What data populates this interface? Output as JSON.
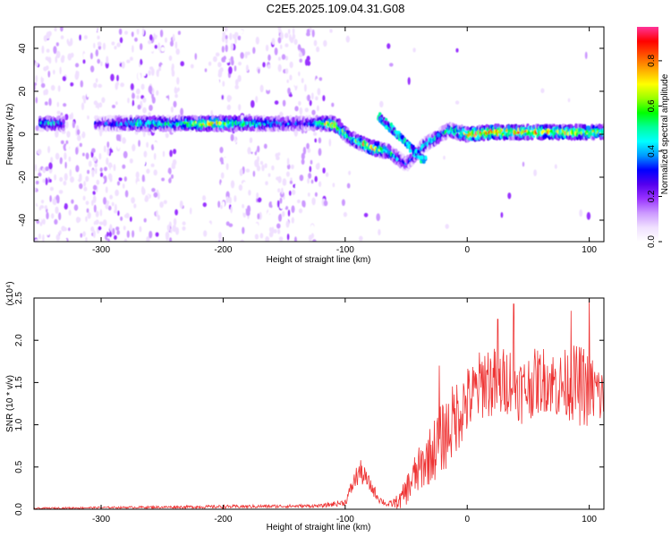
{
  "title": "C2E5.2025.109.04.31.G08",
  "chart_data": [
    {
      "type": "heatmap",
      "xlabel": "Height of straight line (km)",
      "ylabel": "Frequency (Hz)",
      "xlim": [
        -355,
        112
      ],
      "ylim": [
        -50,
        50
      ],
      "xticks": [
        -300,
        -200,
        -100,
        0,
        100
      ],
      "yticks": [
        -40,
        -20,
        0,
        20,
        40
      ],
      "colorbar": {
        "label": "Normalized spectral amplitude",
        "range": [
          0.0,
          0.95
        ],
        "ticks": [
          0.0,
          0.2,
          0.4,
          0.6,
          0.8
        ],
        "colors": [
          "#ffffff",
          "#f0e0ff",
          "#cc99ff",
          "#9933ff",
          "#5500ee",
          "#0000ff",
          "#0099ff",
          "#00ffff",
          "#00ff99",
          "#00ff00",
          "#99ff00",
          "#ffff00",
          "#ffaa00",
          "#ff5500",
          "#ff0000",
          "#ff3399"
        ]
      },
      "ridge": [
        {
          "x": -340,
          "y": 5,
          "a": 0.5
        },
        {
          "x": -300,
          "y": 5,
          "a": 0.35
        },
        {
          "x": -270,
          "y": 5,
          "a": 0.6
        },
        {
          "x": -240,
          "y": 5,
          "a": 0.6
        },
        {
          "x": -215,
          "y": 5,
          "a": 0.85
        },
        {
          "x": -190,
          "y": 5,
          "a": 0.7
        },
        {
          "x": -160,
          "y": 5,
          "a": 0.5
        },
        {
          "x": -130,
          "y": 5,
          "a": 0.4
        },
        {
          "x": -110,
          "y": 5,
          "a": 0.9
        },
        {
          "x": -95,
          "y": -2,
          "a": 0.6
        },
        {
          "x": -80,
          "y": -6,
          "a": 0.9
        },
        {
          "x": -65,
          "y": -8,
          "a": 0.6
        },
        {
          "x": -50,
          "y": -14,
          "a": 0.4
        },
        {
          "x": -35,
          "y": -5,
          "a": 0.6
        },
        {
          "x": -15,
          "y": 2,
          "a": 0.55
        },
        {
          "x": 0,
          "y": 0,
          "a": 0.9
        },
        {
          "x": 20,
          "y": 1,
          "a": 0.95
        },
        {
          "x": 50,
          "y": 1,
          "a": 0.9
        },
        {
          "x": 80,
          "y": 1,
          "a": 0.85
        },
        {
          "x": 105,
          "y": 1,
          "a": 0.75
        }
      ]
    },
    {
      "type": "line",
      "xlabel": "Height of straight line (km)",
      "ylabel": "SNR (10 * v/v)",
      "yscale_label": "(x10⁴)",
      "xlim": [
        -355,
        112
      ],
      "ylim": [
        0.0,
        2.5
      ],
      "xticks": [
        -300,
        -200,
        -100,
        0,
        100
      ],
      "yticks": [
        0.0,
        0.5,
        1.0,
        1.5,
        2.0,
        2.5
      ],
      "color": "#ee3333",
      "envelope": {
        "x": [
          -355,
          -300,
          -200,
          -120,
          -100,
          -92,
          -88,
          -84,
          -78,
          -72,
          -65,
          -55,
          -45,
          -35,
          -25,
          -15,
          -5,
          5,
          15,
          25,
          35,
          45,
          55,
          65,
          75,
          85,
          95,
          105,
          112
        ],
        "mean": [
          0.01,
          0.02,
          0.03,
          0.04,
          0.08,
          0.35,
          0.45,
          0.38,
          0.25,
          0.12,
          0.05,
          0.1,
          0.35,
          0.55,
          0.75,
          0.95,
          1.2,
          1.35,
          1.55,
          1.45,
          1.55,
          1.4,
          1.5,
          1.55,
          1.45,
          1.5,
          1.45,
          1.4,
          1.3
        ],
        "amp": [
          0.01,
          0.01,
          0.02,
          0.02,
          0.04,
          0.12,
          0.15,
          0.12,
          0.08,
          0.05,
          0.03,
          0.1,
          0.25,
          0.3,
          0.4,
          0.45,
          0.45,
          0.4,
          0.45,
          0.45,
          0.4,
          0.4,
          0.4,
          0.4,
          0.4,
          0.45,
          0.5,
          0.4,
          0.35
        ]
      },
      "peaks": [
        {
          "x": -23,
          "y": 1.7
        },
        {
          "x": 25,
          "y": 2.25
        },
        {
          "x": 38,
          "y": 2.43
        },
        {
          "x": 85,
          "y": 2.35
        },
        {
          "x": 100,
          "y": 2.55
        }
      ]
    }
  ]
}
